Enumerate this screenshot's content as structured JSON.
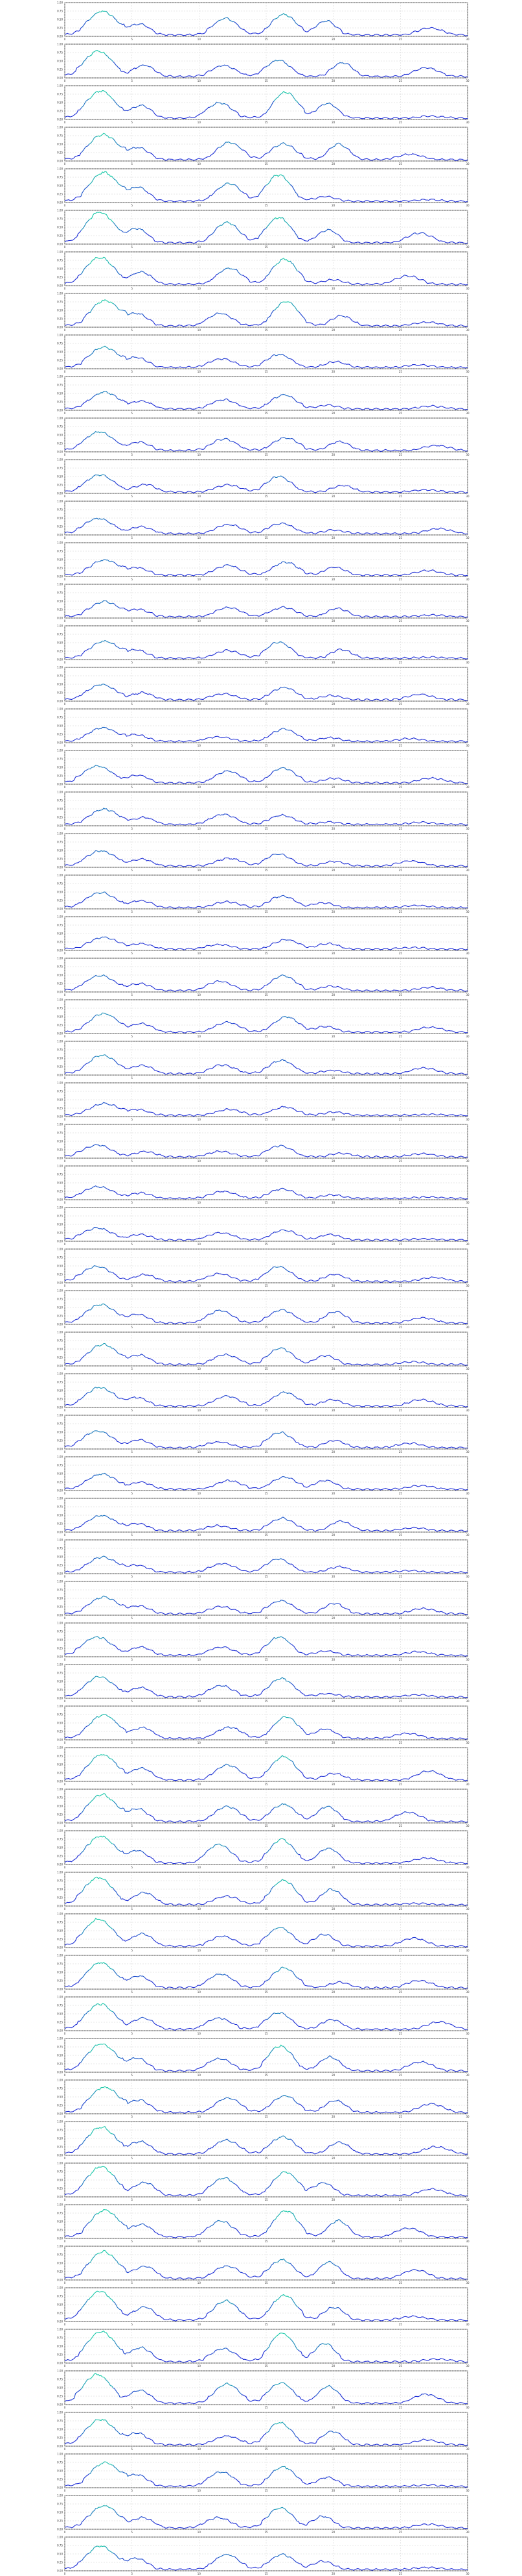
{
  "figure": {
    "background": "#ffffff",
    "line_color_low": "#1f2fd6",
    "line_color_high": "#19c9a8",
    "panel_count": 62
  },
  "chart_data": {
    "type": "line",
    "panels": 62,
    "x_ticks": [
      "0",
      "5",
      "10",
      "15",
      "20",
      "25",
      "30"
    ],
    "xlim": [
      0,
      30
    ],
    "ylim": [
      0,
      1
    ],
    "grid": true,
    "series_shape": "daily-cycle traces with two recurring peaks per panel; amplitude varies per panel",
    "panel_amplitudes": [
      0.7,
      0.75,
      0.8,
      0.75,
      0.85,
      0.9,
      0.8,
      0.75,
      0.6,
      0.5,
      0.55,
      0.5,
      0.45,
      0.45,
      0.45,
      0.5,
      0.45,
      0.4,
      0.5,
      0.45,
      0.45,
      0.45,
      0.35,
      0.45,
      0.55,
      0.55,
      0.35,
      0.35,
      0.35,
      0.35,
      0.45,
      0.55,
      0.6,
      0.55,
      0.5,
      0.45,
      0.45,
      0.45,
      0.5,
      0.55,
      0.6,
      0.7,
      0.75,
      0.8,
      0.8,
      0.8,
      0.8,
      0.75,
      0.75,
      0.8,
      0.75,
      0.8,
      0.85,
      0.8,
      0.8,
      0.85,
      0.9,
      0.85,
      0.75,
      0.7,
      0.65,
      0.7
    ]
  }
}
